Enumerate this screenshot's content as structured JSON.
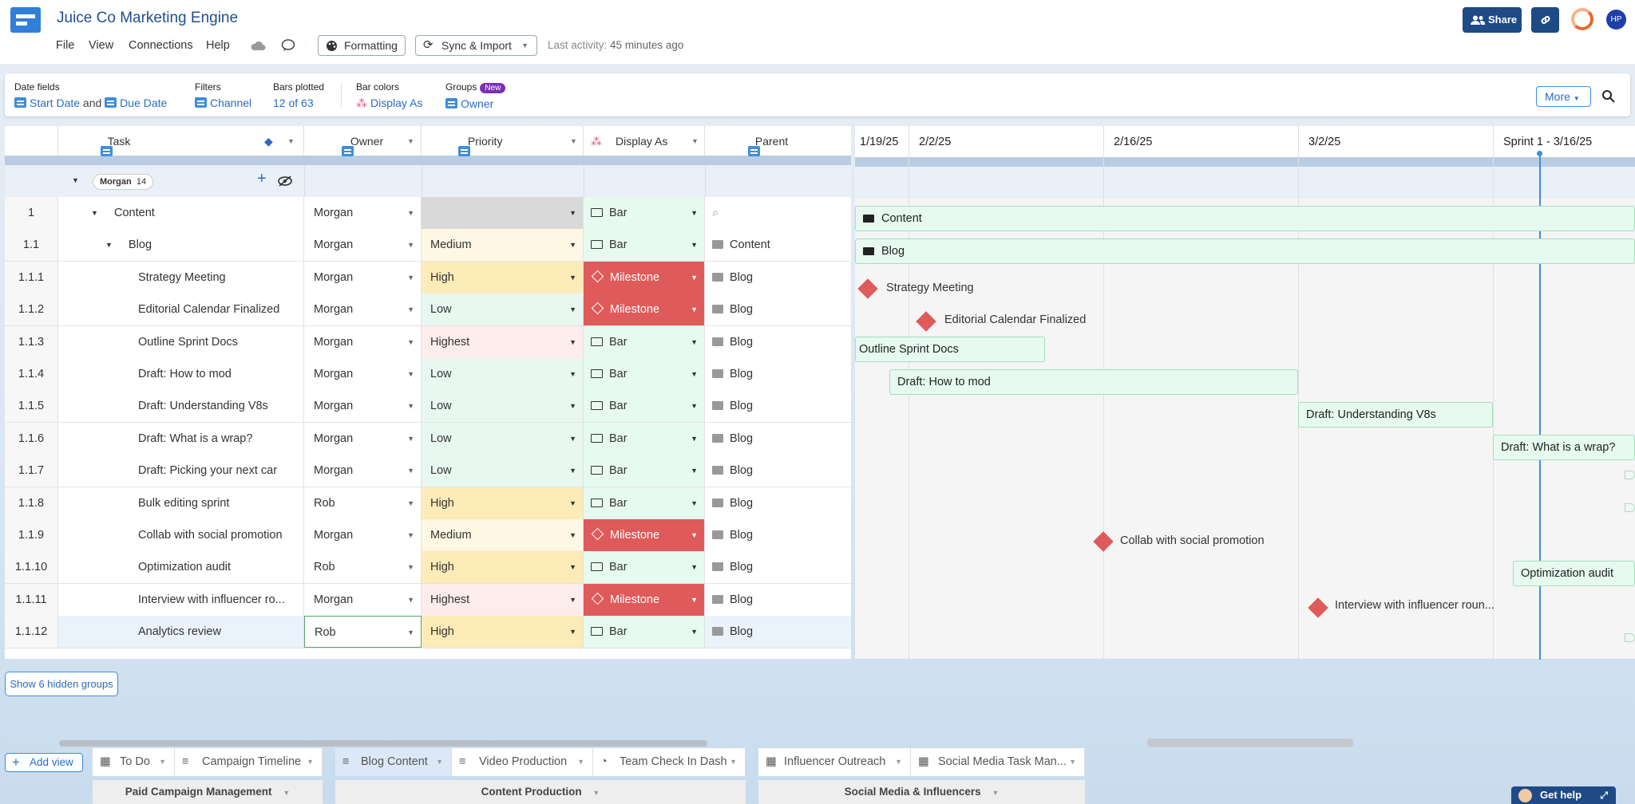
{
  "app": {
    "title": "Juice Co Marketing Engine",
    "avatar_initials": "HP"
  },
  "menu": [
    "File",
    "View",
    "Connections",
    "Help"
  ],
  "toolbar": {
    "formatting": "Formatting",
    "sync_import": "Sync & Import",
    "last_activity_label": "Last activity:",
    "last_activity_value": "45 minutes ago",
    "share": "Share"
  },
  "filters": {
    "date_fields_label": "Date fields",
    "start_date": "Start Date",
    "and": "and",
    "due_date": "Due Date",
    "filters_label": "Filters",
    "filters_value": "Channel",
    "bars_label": "Bars plotted",
    "bars_value": "12 of 63",
    "bar_colors_label": "Bar colors",
    "bar_colors_value": "Display As",
    "groups_label": "Groups",
    "groups_new": "New",
    "groups_value": "Owner",
    "more": "More"
  },
  "columns": {
    "task": "Task",
    "owner": "Owner",
    "priority": "Priority",
    "display_as": "Display As",
    "parent": "Parent"
  },
  "group": {
    "name": "Morgan",
    "count": "14"
  },
  "rows": [
    {
      "num": "1",
      "task": "Content",
      "owner": "Morgan",
      "priority": "",
      "display": "Bar",
      "parent": ""
    },
    {
      "num": "1.1",
      "task": "Blog",
      "owner": "Morgan",
      "priority": "Medium",
      "display": "Bar",
      "parent": "Content"
    },
    {
      "num": "1.1.1",
      "task": "Strategy Meeting",
      "owner": "Morgan",
      "priority": "High",
      "display": "Milestone",
      "parent": "Blog"
    },
    {
      "num": "1.1.2",
      "task": "Editorial Calendar Finalized",
      "owner": "Morgan",
      "priority": "Low",
      "display": "Milestone",
      "parent": "Blog"
    },
    {
      "num": "1.1.3",
      "task": "Outline Sprint Docs",
      "owner": "Morgan",
      "priority": "Highest",
      "display": "Bar",
      "parent": "Blog"
    },
    {
      "num": "1.1.4",
      "task": "Draft: How to mod",
      "owner": "Morgan",
      "priority": "Low",
      "display": "Bar",
      "parent": "Blog"
    },
    {
      "num": "1.1.5",
      "task": "Draft: Understanding V8s",
      "owner": "Morgan",
      "priority": "Low",
      "display": "Bar",
      "parent": "Blog"
    },
    {
      "num": "1.1.6",
      "task": "Draft: What is a wrap?",
      "owner": "Morgan",
      "priority": "Low",
      "display": "Bar",
      "parent": "Blog"
    },
    {
      "num": "1.1.7",
      "task": "Draft: Picking your next car",
      "owner": "Morgan",
      "priority": "Low",
      "display": "Bar",
      "parent": "Blog"
    },
    {
      "num": "1.1.8",
      "task": "Bulk editing sprint",
      "owner": "Rob",
      "priority": "High",
      "display": "Bar",
      "parent": "Blog"
    },
    {
      "num": "1.1.9",
      "task": "Collab with social promotion",
      "owner": "Morgan",
      "priority": "Medium",
      "display": "Milestone",
      "parent": "Blog"
    },
    {
      "num": "1.1.10",
      "task": "Optimization audit",
      "owner": "Rob",
      "priority": "High",
      "display": "Bar",
      "parent": "Blog"
    },
    {
      "num": "1.1.11",
      "task": "Interview with influencer ro...",
      "owner": "Morgan",
      "priority": "Highest",
      "display": "Milestone",
      "parent": "Blog"
    },
    {
      "num": "1.1.12",
      "task": "Analytics review",
      "owner": "Rob",
      "priority": "High",
      "display": "Bar",
      "parent": "Blog"
    }
  ],
  "gantt": {
    "dates": [
      "1/19/25",
      "2/2/25",
      "2/16/25",
      "3/2/25",
      "Sprint 1 - 3/16/25"
    ],
    "items": {
      "content": "Content",
      "blog": "Blog",
      "strategy": "Strategy Meeting",
      "editorial": "Editorial Calendar Finalized",
      "outline": "Outline Sprint Docs",
      "howto": "Draft: How to mod",
      "v8": "Draft: Understanding V8s",
      "wrap": "Draft: What is a wrap?",
      "collab": "Collab with social promotion",
      "optim": "Optimization audit",
      "interview": "Interview with influencer roun..."
    }
  },
  "show_hidden": "Show 6 hidden groups",
  "views": {
    "add": "Add view",
    "tabs": [
      "To Do",
      "Campaign Timeline",
      "Blog Content",
      "Video Production",
      "Team Check In Dash",
      "Influencer Outreach",
      "Social Media Task Man..."
    ],
    "groups": [
      "Paid Campaign Management",
      "Content Production",
      "Social Media & Influencers"
    ]
  },
  "get_help": "Get help",
  "colors": {
    "accent": "#2a6cc4",
    "brand": "#1e4a86",
    "milestone": "#df5a5a",
    "bar_fill": "#e6faf0"
  }
}
